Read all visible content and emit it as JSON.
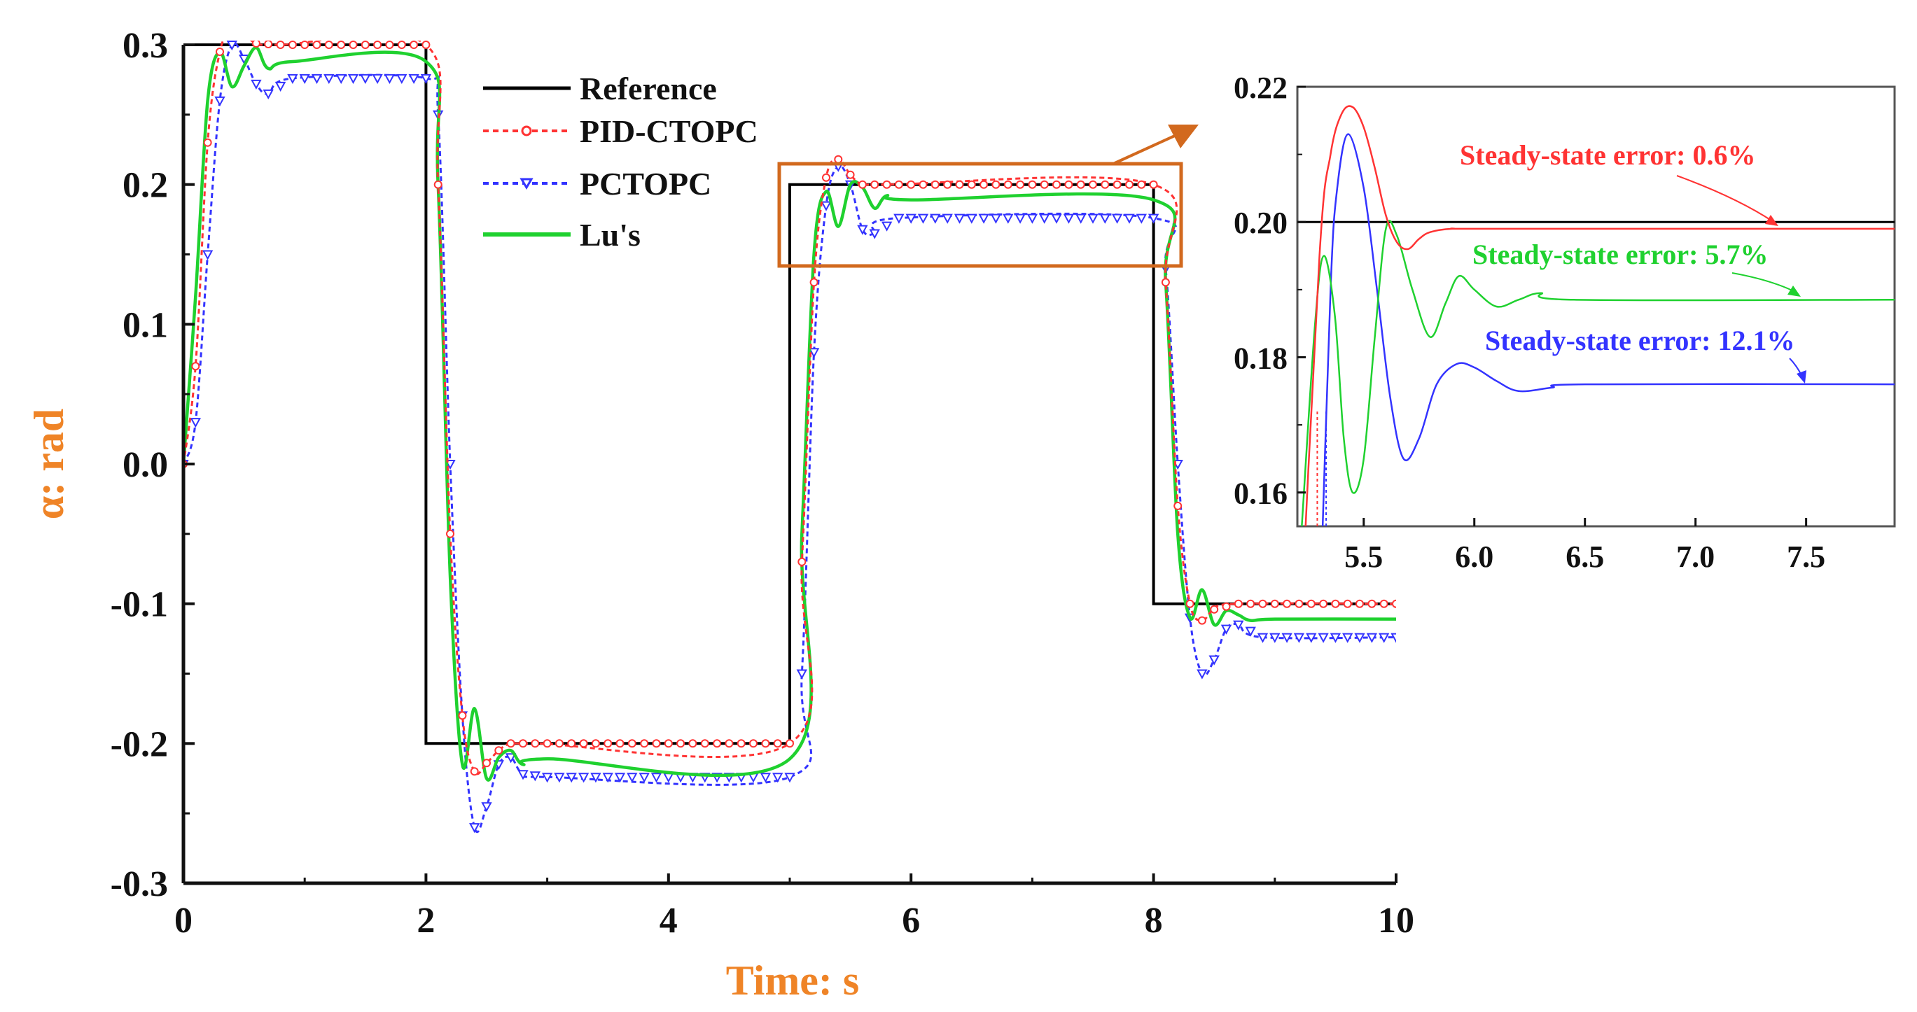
{
  "colors": {
    "reference": "#000000",
    "pid_ctopc": "#ff3333",
    "pctopc": "#3333ff",
    "lus": "#1fd12f",
    "accent": "#d2691e",
    "axis": "#111111"
  },
  "chart_data": [
    {
      "type": "line",
      "name": "main",
      "xlabel": "Time: s",
      "ylabel": "α: rad",
      "xlim": [
        0,
        10
      ],
      "ylim": [
        -0.3,
        0.3
      ],
      "xticks": [
        0,
        2,
        4,
        6,
        8,
        10
      ],
      "xtick_labels": [
        "0",
        "2",
        "4",
        "6",
        "8",
        "10"
      ],
      "yticks": [
        0.3,
        0.2,
        0.1,
        0.0,
        -0.1,
        -0.2,
        -0.3
      ],
      "ytick_labels": [
        "0.3",
        "0.2",
        "0.1",
        "0.0",
        "-0.1",
        "-0.2",
        "-0.3"
      ],
      "legend": {
        "position": "top-center",
        "entries": [
          {
            "label": "Reference",
            "series": "reference"
          },
          {
            "label": "PID-CTOPC",
            "series": "pid_ctopc"
          },
          {
            "label": "PCTOPC",
            "series": "pctopc"
          },
          {
            "label": "Lu's",
            "series": "lus"
          }
        ]
      },
      "reference_steps": [
        {
          "start": 0,
          "end": 2,
          "value": 0.3
        },
        {
          "start": 2,
          "end": 5,
          "value": -0.2
        },
        {
          "start": 5,
          "end": 8,
          "value": 0.2
        },
        {
          "start": 8,
          "end": 10,
          "value": -0.1
        }
      ],
      "series": [
        {
          "name": "PID-CTOPC",
          "key": "pid_ctopc",
          "style": "dotted-circle",
          "x": [
            0,
            0.1,
            0.2,
            0.3,
            0.4,
            0.5,
            0.6,
            0.8,
            2.0,
            2.1,
            2.2,
            2.3,
            2.4,
            2.5,
            2.6,
            2.7,
            2.9,
            5.0,
            5.1,
            5.2,
            5.3,
            5.4,
            5.5,
            5.6,
            5.8,
            8.0,
            8.1,
            8.2,
            8.3,
            8.4,
            8.5,
            8.7,
            10.0
          ],
          "y": [
            0,
            0.07,
            0.23,
            0.295,
            0.31,
            0.308,
            0.301,
            0.3,
            0.3,
            0.2,
            -0.05,
            -0.18,
            -0.22,
            -0.214,
            -0.205,
            -0.2,
            -0.2,
            -0.2,
            -0.07,
            0.13,
            0.205,
            0.218,
            0.207,
            0.2,
            0.2,
            0.2,
            0.13,
            -0.03,
            -0.1,
            -0.112,
            -0.104,
            -0.1,
            -0.1
          ]
        },
        {
          "name": "PCTOPC",
          "key": "pctopc",
          "style": "dotted-triangle",
          "x": [
            0,
            0.1,
            0.2,
            0.3,
            0.4,
            0.5,
            0.6,
            0.7,
            0.9,
            2.0,
            2.1,
            2.2,
            2.3,
            2.4,
            2.5,
            2.6,
            2.7,
            2.8,
            3.0,
            5.0,
            5.1,
            5.2,
            5.3,
            5.4,
            5.5,
            5.6,
            5.7,
            5.9,
            8.0,
            8.1,
            8.2,
            8.3,
            8.4,
            8.5,
            8.6,
            8.7,
            8.9,
            10.0
          ],
          "y": [
            0,
            0.03,
            0.15,
            0.26,
            0.3,
            0.29,
            0.272,
            0.265,
            0.276,
            0.276,
            0.25,
            0.0,
            -0.18,
            -0.26,
            -0.245,
            -0.215,
            -0.21,
            -0.222,
            -0.224,
            -0.224,
            -0.15,
            0.08,
            0.185,
            0.213,
            0.2,
            0.168,
            0.165,
            0.176,
            0.176,
            0.14,
            0.0,
            -0.11,
            -0.15,
            -0.14,
            -0.118,
            -0.115,
            -0.124,
            -0.124
          ]
        },
        {
          "name": "Lu's",
          "key": "lus",
          "style": "solid",
          "x": [
            0,
            0.1,
            0.2,
            0.3,
            0.4,
            0.5,
            0.6,
            0.7,
            0.9,
            2.0,
            2.1,
            2.2,
            2.3,
            2.4,
            2.5,
            2.6,
            2.7,
            2.8,
            3.0,
            5.0,
            5.1,
            5.2,
            5.3,
            5.4,
            5.5,
            5.6,
            5.7,
            5.8,
            6.0,
            8.0,
            8.1,
            8.2,
            8.3,
            8.4,
            8.5,
            8.6,
            8.7,
            8.8,
            9.0,
            10.0
          ],
          "y": [
            0,
            0.12,
            0.26,
            0.295,
            0.27,
            0.285,
            0.298,
            0.283,
            0.288,
            0.288,
            0.2,
            -0.08,
            -0.215,
            -0.175,
            -0.225,
            -0.21,
            -0.205,
            -0.215,
            -0.211,
            -0.211,
            -0.05,
            0.15,
            0.195,
            0.17,
            0.2,
            0.198,
            0.183,
            0.192,
            0.189,
            0.189,
            0.13,
            -0.05,
            -0.11,
            -0.09,
            -0.115,
            -0.105,
            -0.108,
            -0.112,
            -0.111,
            -0.111
          ]
        }
      ]
    },
    {
      "type": "line",
      "name": "inset",
      "xlim": [
        5.2,
        7.9
      ],
      "ylim": [
        0.155,
        0.22
      ],
      "xticks": [
        5.5,
        6.0,
        6.5,
        7.0,
        7.5
      ],
      "xtick_labels": [
        "5.5",
        "6.0",
        "6.5",
        "7.0",
        "7.5"
      ],
      "yticks": [
        0.22,
        0.2,
        0.18,
        0.16
      ],
      "ytick_labels": [
        "0.22",
        "0.20",
        "0.18",
        "0.16"
      ],
      "reference_value": 0.2,
      "annotations": [
        {
          "text": "Steady-state error: 0.6%",
          "series": "pid_ctopc",
          "x": 7.3
        },
        {
          "text": "Steady-state error: 5.7%",
          "series": "lus",
          "x": 7.5
        },
        {
          "text": "Steady-state error: 12.1%",
          "series": "pctopc",
          "x": 7.5
        }
      ],
      "series": [
        {
          "name": "PID-CTOPC",
          "key": "pid_ctopc",
          "x": [
            5.2,
            5.3,
            5.35,
            5.4,
            5.45,
            5.5,
            5.55,
            5.6,
            5.65,
            5.7,
            5.75,
            5.8,
            5.9,
            6.1,
            7.9
          ],
          "y": [
            0.13,
            0.195,
            0.21,
            0.216,
            0.217,
            0.214,
            0.208,
            0.201,
            0.197,
            0.196,
            0.1975,
            0.1985,
            0.199,
            0.199,
            0.199
          ]
        },
        {
          "name": "PCTOPC",
          "key": "pctopc",
          "x": [
            5.3,
            5.35,
            5.38,
            5.43,
            5.5,
            5.56,
            5.62,
            5.68,
            5.75,
            5.83,
            5.92,
            6.0,
            6.1,
            6.2,
            6.35,
            6.5,
            7.9
          ],
          "y": [
            0.14,
            0.19,
            0.205,
            0.213,
            0.205,
            0.19,
            0.174,
            0.165,
            0.168,
            0.176,
            0.179,
            0.1785,
            0.1765,
            0.175,
            0.1755,
            0.176,
            0.176
          ]
        },
        {
          "name": "Lu's",
          "key": "lus",
          "x": [
            5.22,
            5.28,
            5.32,
            5.37,
            5.41,
            5.45,
            5.5,
            5.55,
            5.6,
            5.65,
            5.72,
            5.8,
            5.87,
            5.93,
            6.0,
            6.1,
            6.2,
            6.3,
            6.45,
            7.9
          ],
          "y": [
            0.155,
            0.185,
            0.195,
            0.186,
            0.168,
            0.16,
            0.165,
            0.183,
            0.199,
            0.198,
            0.19,
            0.183,
            0.188,
            0.192,
            0.19,
            0.1875,
            0.1885,
            0.1895,
            0.1885,
            0.1885
          ]
        }
      ]
    }
  ]
}
